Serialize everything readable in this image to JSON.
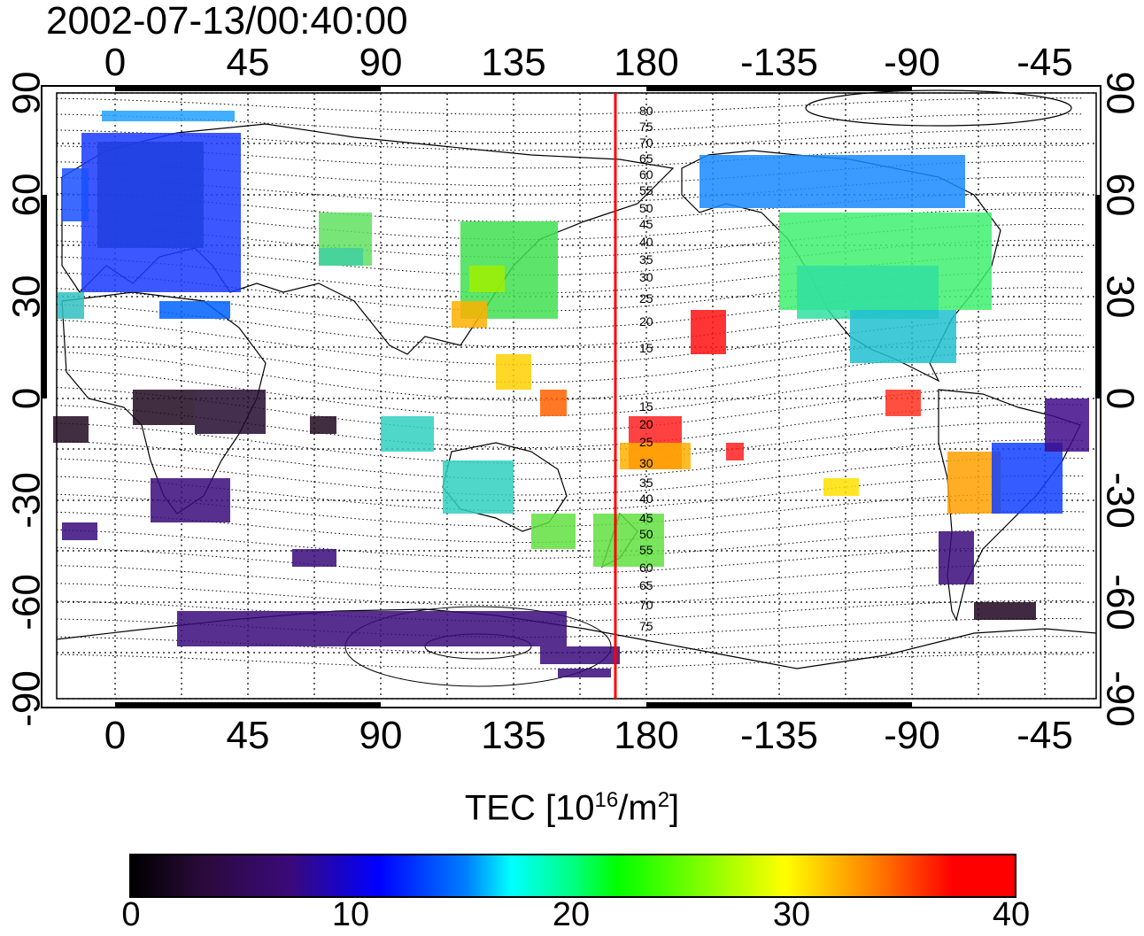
{
  "title": "2002-07-13/00:40:00",
  "map": {
    "lon_ticks": [
      "0",
      "45",
      "90",
      "135",
      "180",
      "-135",
      "-90",
      "-45"
    ],
    "lat_ticks": [
      "90",
      "60",
      "30",
      "0",
      "-30",
      "-60",
      "-90"
    ],
    "marker_longitude_label": "170",
    "contour_labels": [
      "80",
      "75",
      "70",
      "65",
      "60",
      "55",
      "50",
      "45",
      "40",
      "35",
      "30",
      "25",
      "20",
      "15",
      "15",
      "20",
      "25",
      "30",
      "35",
      "40",
      "45",
      "50",
      "55",
      "60",
      "65",
      "70",
      "75"
    ]
  },
  "colorbar": {
    "title": "TEC  [10",
    "title_sup1": "16",
    "title_mid": "/m",
    "title_sup2": "2",
    "title_end": "]",
    "ticks": [
      "0",
      "10",
      "20",
      "30",
      "40"
    ],
    "colors": [
      "#000000",
      "#3a0a7a",
      "#0000ff",
      "#00ffff",
      "#00ff00",
      "#ffff00",
      "#ff0000"
    ]
  }
}
